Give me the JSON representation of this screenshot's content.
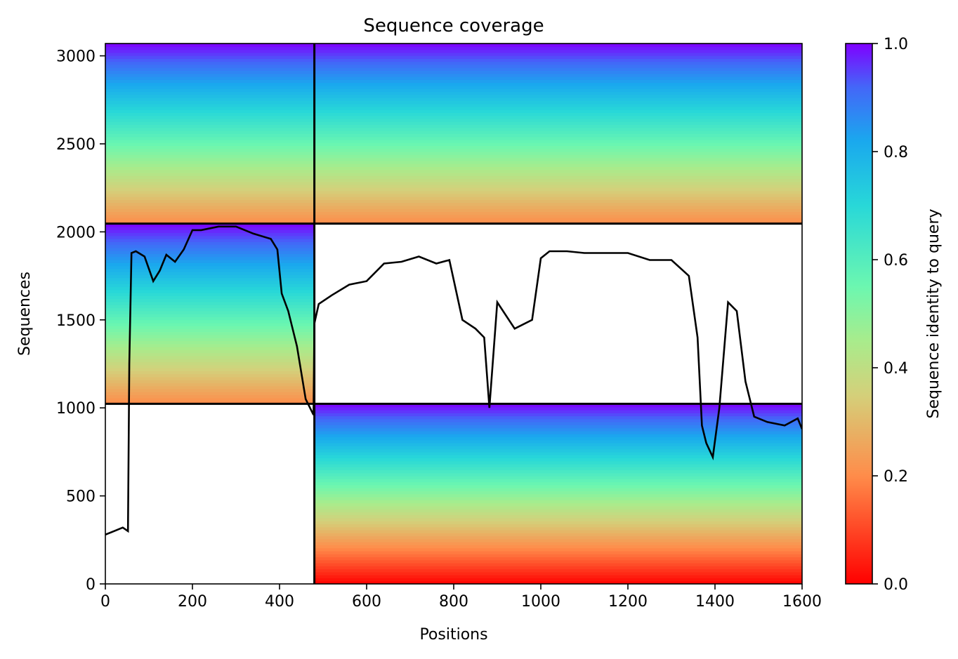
{
  "chart_data": {
    "type": "heatmap",
    "title": "Sequence coverage",
    "xlabel": "Positions",
    "ylabel": "Sequences",
    "xlim": [
      0,
      1600
    ],
    "ylim": [
      0,
      3070
    ],
    "xticks": [
      0,
      200,
      400,
      600,
      800,
      1000,
      1200,
      1400,
      1600
    ],
    "yticks": [
      0,
      500,
      1000,
      1500,
      2000,
      2500,
      3000
    ],
    "colorbar": {
      "label": "Sequence identity to query",
      "range": [
        0,
        1
      ],
      "ticks": [
        "0.0",
        "0.2",
        "0.4",
        "0.6",
        "0.8",
        "1.0"
      ],
      "colormap": "rainbow (red to violet)"
    },
    "blocks": [
      {
        "x_start": 0,
        "x_end": 480,
        "y_start": 2047,
        "y_end": 3070,
        "identity_range": [
          0.2,
          1.0
        ]
      },
      {
        "x_start": 480,
        "x_end": 1600,
        "y_start": 2047,
        "y_end": 3070,
        "identity_range": [
          0.2,
          1.0
        ]
      },
      {
        "x_start": 0,
        "x_end": 480,
        "y_start": 1023,
        "y_end": 2047,
        "identity_range": [
          0.2,
          1.0
        ]
      },
      {
        "x_start": 480,
        "x_end": 1600,
        "y_start": 0,
        "y_end": 1023,
        "identity_range": [
          0.0,
          1.0
        ]
      }
    ],
    "divider_lines": {
      "vertical_x": 480,
      "horizontal_y": [
        1023,
        2047
      ]
    },
    "coverage_line": {
      "color": "#000000",
      "x": [
        0,
        20,
        40,
        52,
        55,
        60,
        70,
        90,
        110,
        125,
        140,
        160,
        180,
        200,
        220,
        260,
        300,
        340,
        380,
        395,
        405,
        420,
        440,
        460,
        478,
        480,
        490,
        520,
        560,
        600,
        640,
        680,
        720,
        760,
        790,
        820,
        850,
        870,
        882,
        900,
        940,
        980,
        1000,
        1020,
        1060,
        1100,
        1150,
        1200,
        1250,
        1300,
        1340,
        1360,
        1370,
        1380,
        1395,
        1410,
        1430,
        1450,
        1470,
        1490,
        1520,
        1560,
        1590,
        1600
      ],
      "y": [
        280,
        300,
        320,
        300,
        1250,
        1880,
        1890,
        1860,
        1720,
        1780,
        1870,
        1830,
        1900,
        2010,
        2010,
        2030,
        2030,
        1990,
        1960,
        1900,
        1650,
        1550,
        1350,
        1050,
        960,
        1480,
        1590,
        1640,
        1700,
        1720,
        1820,
        1830,
        1860,
        1820,
        1840,
        1500,
        1450,
        1400,
        1000,
        1600,
        1450,
        1500,
        1850,
        1890,
        1890,
        1880,
        1880,
        1880,
        1840,
        1840,
        1750,
        1400,
        900,
        800,
        720,
        1000,
        1600,
        1550,
        1150,
        950,
        920,
        900,
        940,
        880
      ]
    }
  }
}
